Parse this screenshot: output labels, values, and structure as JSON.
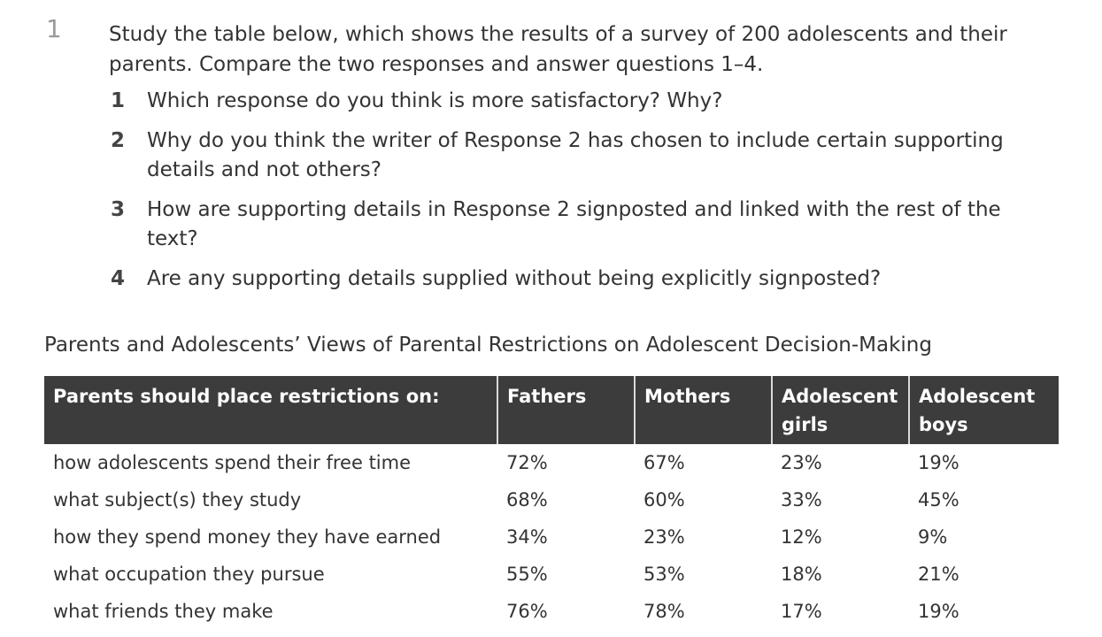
{
  "exercise": {
    "number": "1",
    "intro": "Study the table below, which shows the results of a survey of 200 adolescents and their parents. Compare the two responses and answer questions 1–4.",
    "questions": [
      {
        "num": "1",
        "text": "Which response do you think is more satisfactory? Why?"
      },
      {
        "num": "2",
        "text": "Why do you think the writer of Response 2 has chosen to include certain supporting details and not others?"
      },
      {
        "num": "3",
        "text": "How are supporting details in Response 2 signposted and linked with the rest of the text?"
      },
      {
        "num": "4",
        "text": "Are any supporting details supplied without being explicitly signposted?"
      }
    ]
  },
  "table": {
    "title": "Parents and Adolescents’ Views of Parental Restrictions on Adolescent Decision-Making",
    "headers": [
      "Parents should place restrictions on:",
      "Fathers",
      "Mothers",
      "Adolescent girls",
      "Adolescent boys"
    ],
    "rows": [
      [
        "how adolescents spend their free time",
        "72%",
        "67%",
        "23%",
        "19%"
      ],
      [
        "what subject(s) they study",
        "68%",
        "60%",
        "33%",
        "45%"
      ],
      [
        "how they spend money they have earned",
        "34%",
        "23%",
        "12%",
        "9%"
      ],
      [
        "what occupation they pursue",
        "55%",
        "53%",
        "18%",
        "21%"
      ],
      [
        "what friends they make",
        "76%",
        "78%",
        "17%",
        "19%"
      ]
    ]
  }
}
